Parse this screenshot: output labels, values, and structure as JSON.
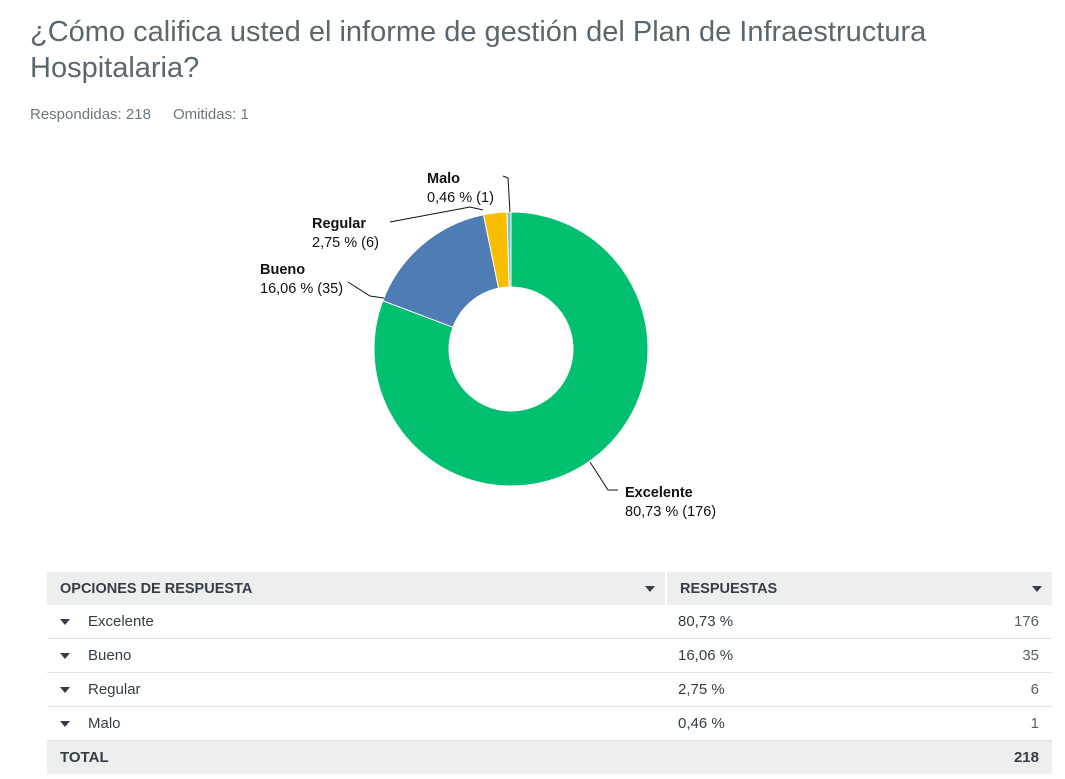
{
  "question": {
    "title": "¿Cómo califica usted el informe de gestión del Plan de Infraestructura Hospitalaria?",
    "answered_label": "Respondidas: 218",
    "skipped_label": "Omitidas: 1"
  },
  "chart_data": {
    "type": "pie",
    "subtype": "donut",
    "categories": [
      "Excelente",
      "Bueno",
      "Regular",
      "Malo"
    ],
    "values": [
      80.73,
      16.06,
      2.75,
      0.46
    ],
    "counts": [
      176,
      35,
      6,
      1
    ],
    "value_labels": [
      "80,73 % (176)",
      "16,06 % (35)",
      "2,75 % (6)",
      "0,46 % (1)"
    ],
    "colors": [
      "#00bf6f",
      "#507cb6",
      "#f9be00",
      "#6bc8cd"
    ]
  },
  "table": {
    "header_options": "OPCIONES DE RESPUESTA",
    "header_responses": "RESPUESTAS",
    "rows": [
      {
        "option": "Excelente",
        "percent": "80,73 %",
        "count": "176"
      },
      {
        "option": "Bueno",
        "percent": "16,06 %",
        "count": "35"
      },
      {
        "option": "Regular",
        "percent": "2,75 %",
        "count": "6"
      },
      {
        "option": "Malo",
        "percent": "0,46 %",
        "count": "1"
      }
    ],
    "total_label": "TOTAL",
    "total_value": "218"
  }
}
